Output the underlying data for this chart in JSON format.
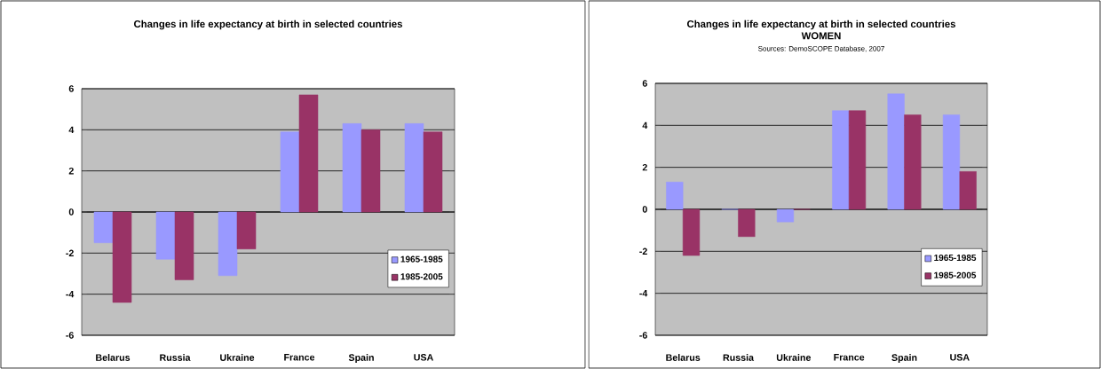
{
  "chart_data": [
    {
      "type": "bar",
      "title": "Changes in life expectancy at birth in selected countries",
      "categories": [
        "Belarus",
        "Russia",
        "Ukraine",
        "France",
        "Spain",
        "USA"
      ],
      "series": [
        {
          "name": "1965-1985",
          "color": "#9999ff",
          "values": [
            -1.5,
            -2.3,
            -3.1,
            3.9,
            4.3,
            4.3
          ]
        },
        {
          "name": "1985-2005",
          "color": "#993366",
          "values": [
            -4.4,
            -3.3,
            -1.8,
            5.7,
            4.0,
            3.9
          ]
        }
      ],
      "ylim": [
        -6,
        6
      ],
      "yticks": [
        -6,
        -4,
        -2,
        0,
        2,
        4,
        6
      ],
      "grid": "y",
      "legend": "right"
    },
    {
      "type": "bar",
      "title": "Changes in life expectancy at birth in selected countries",
      "subtitle": "WOMEN",
      "annotations": [
        "Sources: DemoSCOPE Database, 2007"
      ],
      "categories": [
        "Belarus",
        "Russia",
        "Ukraine",
        "France",
        "Spain",
        "USA"
      ],
      "series": [
        {
          "name": "1965-1985",
          "color": "#9999ff",
          "values": [
            1.3,
            0,
            -0.6,
            4.7,
            5.5,
            4.5
          ]
        },
        {
          "name": "1985-2005",
          "color": "#993366",
          "values": [
            -2.2,
            -1.3,
            0,
            4.7,
            4.5,
            1.8
          ]
        }
      ],
      "ylim": [
        -6,
        6
      ],
      "yticks": [
        -6,
        -4,
        -2,
        0,
        2,
        4,
        6
      ],
      "grid": "y",
      "legend": "right"
    }
  ]
}
